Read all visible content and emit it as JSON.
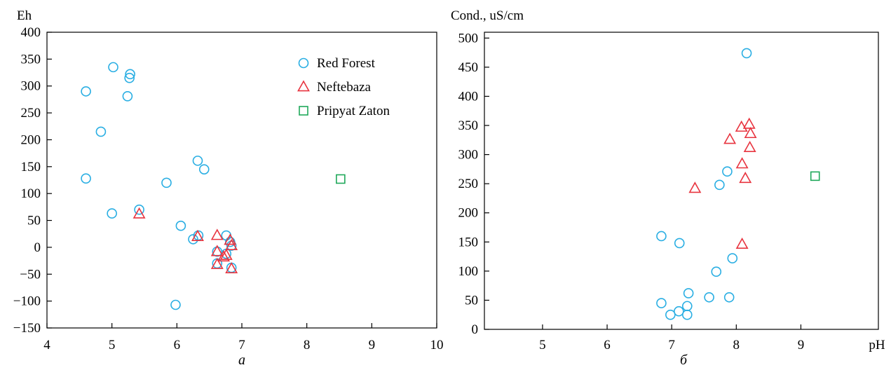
{
  "chart_data": [
    {
      "type": "scatter",
      "panel_label": "а",
      "xlabel": "",
      "ylabel": "Eh",
      "xlim": [
        4,
        10
      ],
      "ylim": [
        -150,
        400
      ],
      "xticks": [
        4,
        5,
        6,
        7,
        8,
        9,
        10
      ],
      "yticks": [
        400,
        350,
        300,
        250,
        200,
        150,
        100,
        50,
        0,
        -50,
        -100,
        -150
      ],
      "grid": false,
      "legend_position": "top-right",
      "series": [
        {
          "name": "Red Forest",
          "marker": "circle",
          "color": "#29aee3",
          "points": [
            [
              4.6,
              290
            ],
            [
              5.02,
              335
            ],
            [
              5.28,
              322
            ],
            [
              5.27,
              315
            ],
            [
              5.24,
              281
            ],
            [
              4.83,
              215
            ],
            [
              4.6,
              128
            ],
            [
              5.0,
              63
            ],
            [
              5.42,
              70
            ],
            [
              5.84,
              120
            ],
            [
              6.32,
              161
            ],
            [
              6.42,
              145
            ],
            [
              6.06,
              40
            ],
            [
              6.25,
              15
            ],
            [
              6.33,
              22
            ],
            [
              6.62,
              -8
            ],
            [
              6.62,
              -30
            ],
            [
              6.76,
              22
            ],
            [
              6.82,
              10
            ],
            [
              6.84,
              3
            ],
            [
              6.76,
              -12
            ],
            [
              6.84,
              -38
            ],
            [
              5.98,
              -107
            ]
          ]
        },
        {
          "name": "Neftebaza",
          "marker": "triangle",
          "color": "#e8343f",
          "points": [
            [
              5.42,
              62
            ],
            [
              6.32,
              20
            ],
            [
              6.62,
              22
            ],
            [
              6.82,
              13
            ],
            [
              6.84,
              3
            ],
            [
              6.62,
              -8
            ],
            [
              6.76,
              -15
            ],
            [
              6.72,
              -18
            ],
            [
              6.62,
              -32
            ],
            [
              6.84,
              -40
            ]
          ]
        },
        {
          "name": "Pripyat Zaton",
          "marker": "square",
          "color": "#1fa85a",
          "points": [
            [
              8.52,
              127
            ]
          ]
        }
      ]
    },
    {
      "type": "scatter",
      "panel_label": "б",
      "xlabel": "pH",
      "ylabel": "Cond., uS/cm",
      "xlim": [
        4.1,
        10.2
      ],
      "ylim": [
        0,
        510
      ],
      "xticks": [
        5,
        6,
        7,
        8,
        9
      ],
      "yticks": [
        500,
        450,
        400,
        350,
        300,
        250,
        200,
        150,
        100,
        50,
        0
      ],
      "grid": false,
      "legend_position": "none",
      "series": [
        {
          "name": "Red Forest",
          "marker": "circle",
          "color": "#29aee3",
          "points": [
            [
              8.16,
              474
            ],
            [
              7.86,
              271
            ],
            [
              7.74,
              248
            ],
            [
              6.84,
              160
            ],
            [
              7.12,
              148
            ],
            [
              7.94,
              122
            ],
            [
              7.69,
              99
            ],
            [
              7.26,
              62
            ],
            [
              7.58,
              55
            ],
            [
              7.89,
              55
            ],
            [
              6.84,
              45
            ],
            [
              7.24,
              40
            ],
            [
              7.11,
              31
            ],
            [
              6.98,
              25
            ],
            [
              7.24,
              25
            ]
          ]
        },
        {
          "name": "Neftebaza",
          "marker": "triangle",
          "color": "#e8343f",
          "points": [
            [
              8.2,
              352
            ],
            [
              8.08,
              347
            ],
            [
              8.22,
              336
            ],
            [
              7.9,
              326
            ],
            [
              8.21,
              312
            ],
            [
              8.09,
              284
            ],
            [
              8.14,
              259
            ],
            [
              7.36,
              242
            ],
            [
              8.09,
              146
            ]
          ]
        },
        {
          "name": "Pripyat Zaton",
          "marker": "square",
          "color": "#1fa85a",
          "points": [
            [
              9.22,
              263
            ]
          ]
        }
      ]
    }
  ]
}
